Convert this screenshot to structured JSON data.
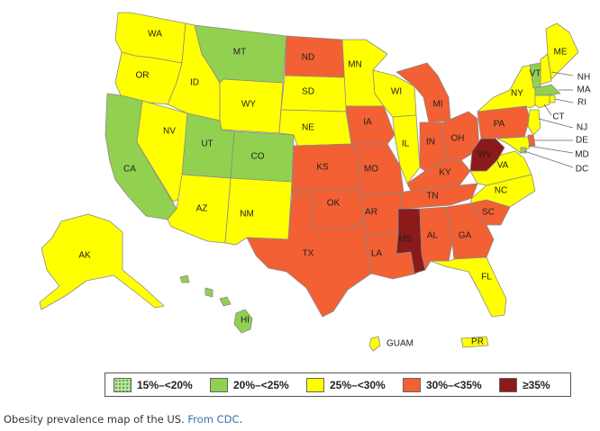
{
  "map": {
    "title": "",
    "colors": {
      "15-20": "#b8e0a0",
      "20-25": "#92d050",
      "25-30": "#ffff00",
      "30-35": "#f26033",
      "35+": "#8b1a1a"
    },
    "states": [
      {
        "abbr": "WA",
        "category": "25-30"
      },
      {
        "abbr": "OR",
        "category": "25-30"
      },
      {
        "abbr": "CA",
        "category": "20-25"
      },
      {
        "abbr": "NV",
        "category": "25-30"
      },
      {
        "abbr": "ID",
        "category": "25-30"
      },
      {
        "abbr": "MT",
        "category": "20-25"
      },
      {
        "abbr": "WY",
        "category": "25-30"
      },
      {
        "abbr": "UT",
        "category": "20-25"
      },
      {
        "abbr": "CO",
        "category": "20-25"
      },
      {
        "abbr": "AZ",
        "category": "25-30"
      },
      {
        "abbr": "NM",
        "category": "25-30"
      },
      {
        "abbr": "ND",
        "category": "30-35"
      },
      {
        "abbr": "SD",
        "category": "25-30"
      },
      {
        "abbr": "NE",
        "category": "25-30"
      },
      {
        "abbr": "KS",
        "category": "30-35"
      },
      {
        "abbr": "OK",
        "category": "30-35"
      },
      {
        "abbr": "TX",
        "category": "30-35"
      },
      {
        "abbr": "MN",
        "category": "25-30"
      },
      {
        "abbr": "IA",
        "category": "30-35"
      },
      {
        "abbr": "MO",
        "category": "30-35"
      },
      {
        "abbr": "AR",
        "category": "30-35"
      },
      {
        "abbr": "LA",
        "category": "30-35"
      },
      {
        "abbr": "WI",
        "category": "25-30"
      },
      {
        "abbr": "IL",
        "category": "25-30"
      },
      {
        "abbr": "MI",
        "category": "30-35"
      },
      {
        "abbr": "IN",
        "category": "30-35"
      },
      {
        "abbr": "OH",
        "category": "30-35"
      },
      {
        "abbr": "KY",
        "category": "30-35"
      },
      {
        "abbr": "TN",
        "category": "30-35"
      },
      {
        "abbr": "MS",
        "category": "35+"
      },
      {
        "abbr": "AL",
        "category": "30-35"
      },
      {
        "abbr": "GA",
        "category": "30-35"
      },
      {
        "abbr": "FL",
        "category": "25-30"
      },
      {
        "abbr": "SC",
        "category": "30-35"
      },
      {
        "abbr": "NC",
        "category": "25-30"
      },
      {
        "abbr": "VA",
        "category": "25-30"
      },
      {
        "abbr": "WV",
        "category": "35+"
      },
      {
        "abbr": "PA",
        "category": "30-35"
      },
      {
        "abbr": "NY",
        "category": "25-30"
      },
      {
        "abbr": "VT",
        "category": "20-25"
      },
      {
        "abbr": "NH",
        "category": "25-30"
      },
      {
        "abbr": "ME",
        "category": "25-30"
      },
      {
        "abbr": "MA",
        "category": "20-25"
      },
      {
        "abbr": "RI",
        "category": "25-30"
      },
      {
        "abbr": "CT",
        "category": "25-30"
      },
      {
        "abbr": "NJ",
        "category": "25-30"
      },
      {
        "abbr": "DE",
        "category": "30-35"
      },
      {
        "abbr": "MD",
        "category": "25-30"
      },
      {
        "abbr": "DC",
        "category": "20-25"
      },
      {
        "abbr": "AK",
        "category": "25-30"
      },
      {
        "abbr": "HI",
        "category": "20-25"
      },
      {
        "abbr": "GUAM",
        "category": "25-30"
      },
      {
        "abbr": "PR",
        "category": "25-30"
      }
    ]
  },
  "legend": [
    {
      "label": "15%–<20%",
      "key": "15-20"
    },
    {
      "label": "20%–<25%",
      "key": "20-25"
    },
    {
      "label": "25%–<30%",
      "key": "25-30"
    },
    {
      "label": "30%–<35%",
      "key": "30-35"
    },
    {
      "label": "≥35%",
      "key": "35+"
    }
  ],
  "caption": {
    "text": "Obesity prevalence map of the US. ",
    "source_link": "From CDC",
    "end": "."
  }
}
